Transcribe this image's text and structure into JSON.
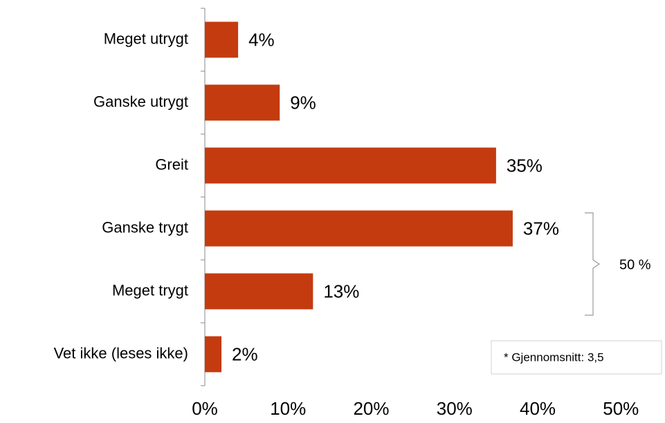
{
  "chart_data": {
    "type": "bar",
    "orientation": "horizontal",
    "categories": [
      "Meget utrygt",
      "Ganske utrygt",
      "Greit",
      "Ganske trygt",
      "Meget trygt",
      "Vet ikke (leses ikke)"
    ],
    "values": [
      4,
      9,
      35,
      37,
      13,
      2
    ],
    "value_labels": [
      "4%",
      "9%",
      "35%",
      "37%",
      "13%",
      "2%"
    ],
    "color": "#c43b0f",
    "xlim": [
      0,
      55.3
    ],
    "xticks": [
      {
        "value": 0,
        "label": "0%"
      },
      {
        "value": 10,
        "label": "10%"
      },
      {
        "value": 20,
        "label": "20%"
      },
      {
        "value": 30,
        "label": "30%"
      },
      {
        "value": 40,
        "label": "40%"
      },
      {
        "value": 50,
        "label": "50%"
      }
    ],
    "bracket_label": "50 %",
    "note": "* Gjennomsnitt: 3,5"
  }
}
